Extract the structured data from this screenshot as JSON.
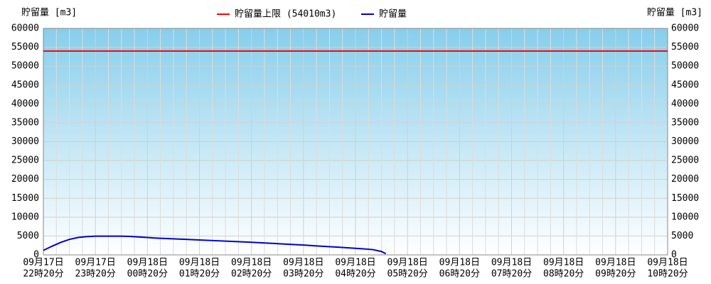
{
  "chart_data": {
    "type": "line",
    "y_label": "貯留量 [m3]",
    "y2_label": "貯留量 [m3]",
    "ylim": [
      0,
      60000
    ],
    "yticks": [
      0,
      5000,
      10000,
      15000,
      20000,
      25000,
      30000,
      35000,
      40000,
      45000,
      50000,
      55000,
      60000
    ],
    "y2lim": [
      0,
      60000
    ],
    "y2ticks": [
      0,
      5000,
      10000,
      15000,
      20000,
      25000,
      30000,
      35000,
      40000,
      45000,
      50000,
      55000,
      60000
    ],
    "xticks": [
      {
        "date": "09月17日",
        "time": "22時20分"
      },
      {
        "date": "09月17日",
        "time": "23時20分"
      },
      {
        "date": "09月18日",
        "time": "00時20分"
      },
      {
        "date": "09月18日",
        "time": "01時20分"
      },
      {
        "date": "09月18日",
        "time": "02時20分"
      },
      {
        "date": "09月18日",
        "time": "03時20分"
      },
      {
        "date": "09月18日",
        "time": "04時20分"
      },
      {
        "date": "09月18日",
        "time": "05時20分"
      },
      {
        "date": "09月18日",
        "time": "06時20分"
      },
      {
        "date": "09月18日",
        "time": "07時20分"
      },
      {
        "date": "09月18日",
        "time": "08時20分"
      },
      {
        "date": "09月18日",
        "time": "09時20分"
      },
      {
        "date": "09月18日",
        "time": "10時20分"
      }
    ],
    "grid": true,
    "limit": {
      "name": "貯留量上限 (54010m3)",
      "value": 54010,
      "color": "#ff0000"
    },
    "x": [
      "09月17日22時20分",
      "09月17日22時30分",
      "09月17日22時40分",
      "09月17日22時50分",
      "09月17日23時00分",
      "09月17日23時10分",
      "09月17日23時20分",
      "09月17日23時30分",
      "09月17日23時40分",
      "09月17日23時50分",
      "09月18日00時00分",
      "09月18日00時10分",
      "09月18日00時20分",
      "09月18日00時30分",
      "09月18日00時40分",
      "09月18日00時50分",
      "09月18日01時00分",
      "09月18日01時20分",
      "09月18日01時40分",
      "09月18日02時00分",
      "09月18日02時20分",
      "09月18日02時40分",
      "09月18日03時00分",
      "09月18日03時20分",
      "09月18日03時40分",
      "09月18日04時00分",
      "09月18日04時20分",
      "09月18日04時40分",
      "09月18日04時50分",
      "09月18日04時55分"
    ],
    "series": [
      {
        "name": "貯留量",
        "color": "#0000cc",
        "values": [
          1200,
          2300,
          3300,
          4100,
          4600,
          4850,
          4950,
          4950,
          4950,
          4950,
          4900,
          4750,
          4600,
          4450,
          4350,
          4250,
          4150,
          3950,
          3750,
          3550,
          3350,
          3100,
          2850,
          2600,
          2300,
          2050,
          1750,
          1400,
          900,
          300
        ]
      }
    ]
  }
}
